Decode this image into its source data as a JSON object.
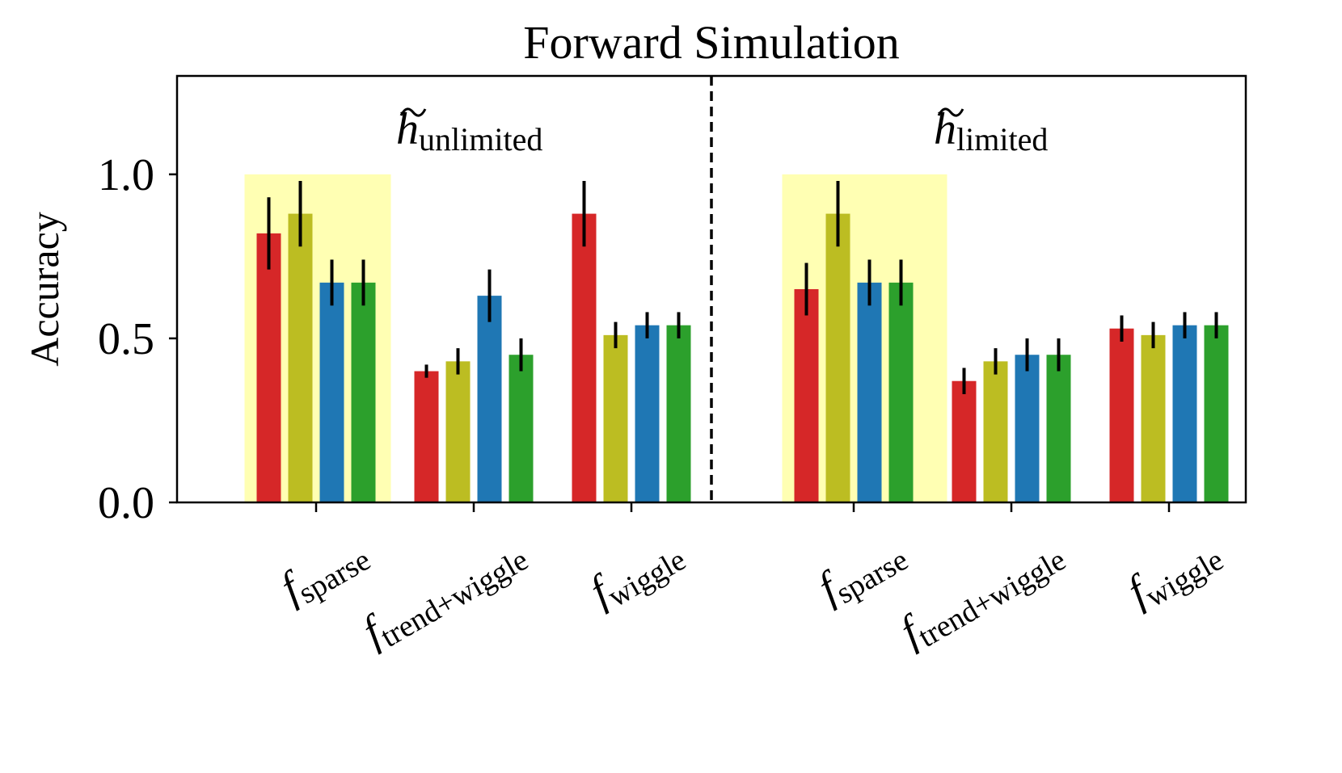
{
  "chart_data": {
    "type": "bar",
    "title": "Forward Simulation",
    "ylabel": "Accuracy",
    "xlabel": "",
    "ylim": [
      0,
      1.3
    ],
    "yticks": [
      {
        "value": 0.0,
        "label": "0.0"
      },
      {
        "value": 0.5,
        "label": "0.5"
      },
      {
        "value": 1.0,
        "label": "1.0"
      }
    ],
    "series_colors": [
      "#d62728",
      "#bcbd22",
      "#1f77b4",
      "#2ca02c"
    ],
    "highlight_color": "#ffffb3",
    "panels": [
      {
        "name": "unlimited",
        "label_main": "h",
        "label_sub": "unlimited",
        "groups": [
          {
            "name": "sparse",
            "tick_main": "f",
            "tick_sub": "sparse",
            "highlight": true,
            "values": [
              0.82,
              0.88,
              0.67,
              0.67
            ],
            "errors": [
              [
                0.71,
                0.93
              ],
              [
                0.78,
                0.98
              ],
              [
                0.6,
                0.74
              ],
              [
                0.6,
                0.74
              ]
            ]
          },
          {
            "name": "trend-wiggle",
            "tick_main": "f",
            "tick_sub": "trend+wiggle",
            "highlight": false,
            "values": [
              0.4,
              0.43,
              0.63,
              0.45
            ],
            "errors": [
              [
                0.38,
                0.42
              ],
              [
                0.39,
                0.47
              ],
              [
                0.55,
                0.71
              ],
              [
                0.4,
                0.5
              ]
            ]
          },
          {
            "name": "wiggle",
            "tick_main": "f",
            "tick_sub": "wiggle",
            "highlight": false,
            "values": [
              0.88,
              0.51,
              0.54,
              0.54
            ],
            "errors": [
              [
                0.78,
                0.98
              ],
              [
                0.47,
                0.55
              ],
              [
                0.5,
                0.58
              ],
              [
                0.5,
                0.58
              ]
            ]
          }
        ]
      },
      {
        "name": "limited",
        "label_main": "h",
        "label_sub": "limited",
        "groups": [
          {
            "name": "sparse",
            "tick_main": "f",
            "tick_sub": "sparse",
            "highlight": true,
            "values": [
              0.65,
              0.88,
              0.67,
              0.67
            ],
            "errors": [
              [
                0.57,
                0.73
              ],
              [
                0.78,
                0.98
              ],
              [
                0.6,
                0.74
              ],
              [
                0.6,
                0.74
              ]
            ]
          },
          {
            "name": "trend-wiggle",
            "tick_main": "f",
            "tick_sub": "trend+wiggle",
            "highlight": false,
            "values": [
              0.37,
              0.43,
              0.45,
              0.45
            ],
            "errors": [
              [
                0.33,
                0.41
              ],
              [
                0.39,
                0.47
              ],
              [
                0.4,
                0.5
              ],
              [
                0.4,
                0.5
              ]
            ]
          },
          {
            "name": "wiggle",
            "tick_main": "f",
            "tick_sub": "wiggle",
            "highlight": false,
            "values": [
              0.53,
              0.51,
              0.54,
              0.54
            ],
            "errors": [
              [
                0.49,
                0.57
              ],
              [
                0.47,
                0.55
              ],
              [
                0.5,
                0.58
              ],
              [
                0.5,
                0.58
              ]
            ]
          }
        ]
      }
    ]
  }
}
